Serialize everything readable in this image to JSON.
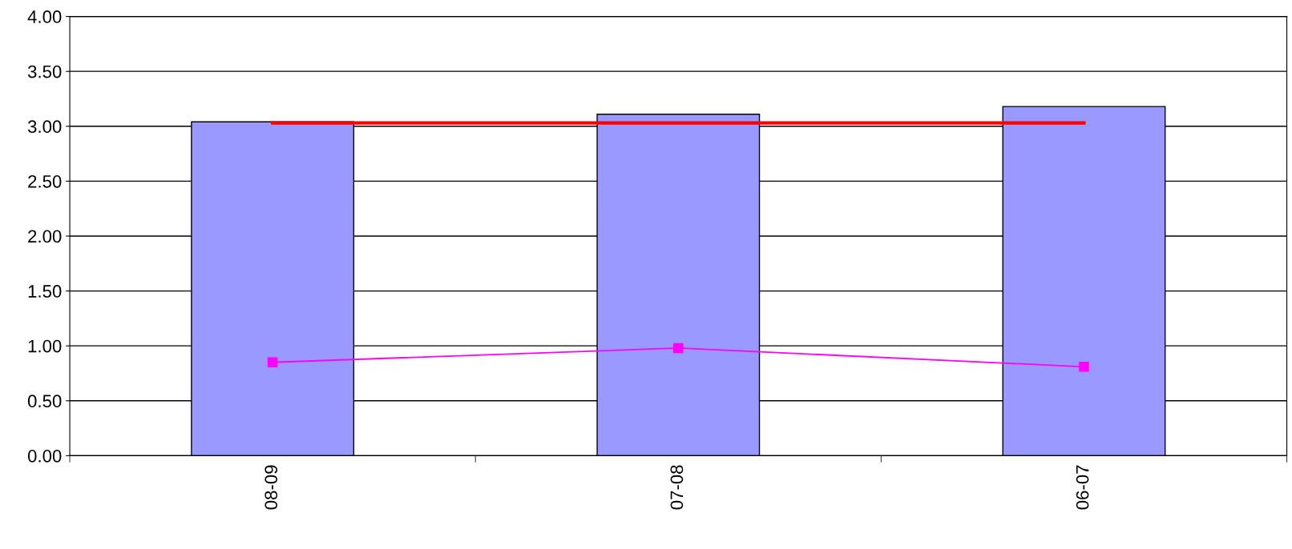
{
  "chart_data": {
    "type": "bar",
    "categories": [
      "08-09",
      "07-08",
      "06-07"
    ],
    "series": [
      {
        "color": "#9999ff",
        "values": [
          3.04,
          3.11,
          3.18
        ]
      },
      {
        "type": "line",
        "color": "#ff0000",
        "values": [
          3.03,
          3.03,
          3.03
        ],
        "marker": "none"
      },
      {
        "type": "line",
        "color": "#ff00ff",
        "values": [
          0.85,
          0.98,
          0.81
        ],
        "marker": "square"
      }
    ],
    "ylim": [
      0,
      4
    ],
    "yticks": [
      {
        "value": 0,
        "label": "0.00"
      },
      {
        "value": 0.5,
        "label": "0.50"
      },
      {
        "value": 1,
        "label": "1.00"
      },
      {
        "value": 1.5,
        "label": "1.50"
      },
      {
        "value": 2,
        "label": "2.00"
      },
      {
        "value": 2.5,
        "label": "2.50"
      },
      {
        "value": 3,
        "label": "3.00"
      },
      {
        "value": 3.5,
        "label": "3.50"
      },
      {
        "value": 4,
        "label": "4.00"
      }
    ],
    "grid": "y"
  }
}
